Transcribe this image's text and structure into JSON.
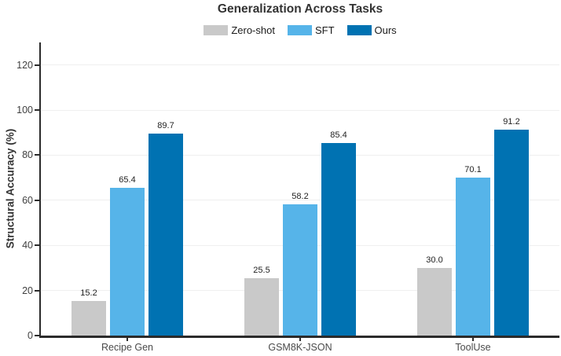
{
  "figure": {
    "title": "Generalization Across Tasks",
    "y_axis_label": "Structural Accuracy (%)"
  },
  "chart_data": {
    "type": "bar",
    "title": "Generalization Across Tasks",
    "categories": [
      "Recipe Gen",
      "GSM8K-JSON",
      "ToolUse"
    ],
    "series": [
      {
        "name": "Zero-shot",
        "color": "#c9c9c9",
        "values": [
          15.2,
          25.5,
          30.0
        ]
      },
      {
        "name": "SFT",
        "color": "#56b4e9",
        "values": [
          65.4,
          58.2,
          70.1
        ]
      },
      {
        "name": "Ours",
        "color": "#0072b2",
        "values": [
          89.7,
          85.4,
          91.2
        ]
      }
    ],
    "xlabel": "",
    "ylabel": "Structural Accuracy (%)",
    "ylim": [
      0,
      130
    ],
    "yticks": [
      0,
      20,
      40,
      60,
      80,
      100,
      120
    ],
    "grid": true,
    "legend_position": "top",
    "value_labels": true,
    "value_label_format": "one-decimal"
  }
}
